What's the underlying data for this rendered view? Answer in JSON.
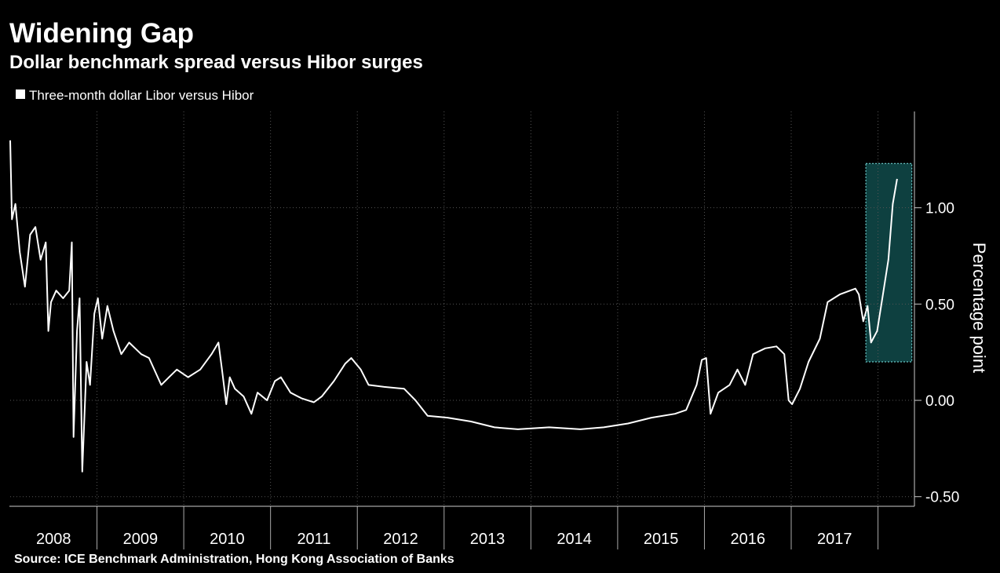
{
  "chart_data": {
    "type": "line",
    "title": "Widening Gap",
    "subtitle": "Dollar benchmark spread versus Hibor surges",
    "source": "Source: ICE Benchmark Administration, Hong Kong Association of Banks",
    "y_axis_label": "Percentage point",
    "xlim": [
      2008,
      2018.42
    ],
    "ylim": [
      -0.55,
      1.5
    ],
    "yticks": [
      {
        "value": 1,
        "label": "1.00"
      },
      {
        "value": 0.5,
        "label": "0.50"
      },
      {
        "value": 0,
        "label": "0.00"
      },
      {
        "value": -0.5,
        "label": "-0.50"
      }
    ],
    "xticks": [
      {
        "value": 2008.5,
        "label": "2008"
      },
      {
        "value": 2009.5,
        "label": "2009"
      },
      {
        "value": 2010.5,
        "label": "2010"
      },
      {
        "value": 2011.5,
        "label": "2011"
      },
      {
        "value": 2012.5,
        "label": "2012"
      },
      {
        "value": 2013.5,
        "label": "2013"
      },
      {
        "value": 2014.5,
        "label": "2014"
      },
      {
        "value": 2015.5,
        "label": "2015"
      },
      {
        "value": 2016.5,
        "label": "2016"
      },
      {
        "value": 2017.5,
        "label": "2017"
      }
    ],
    "xseparators": [
      2009,
      2010,
      2011,
      2012,
      2013,
      2014,
      2015,
      2016,
      2017,
      2018
    ],
    "grid": true,
    "highlight": {
      "xlim": [
        2017.86,
        2018.39
      ],
      "ylim": [
        0.2,
        1.23
      ],
      "color": "#1f8f8f"
    },
    "x": [
      2008.0,
      2008.02,
      2008.06,
      2008.11,
      2008.17,
      2008.23,
      2008.29,
      2008.35,
      2008.41,
      2008.44,
      2008.47,
      2008.53,
      2008.61,
      2008.68,
      2008.71,
      2008.73,
      2008.77,
      2008.8,
      2008.83,
      2008.88,
      2008.92,
      2008.97,
      2009.01,
      2009.06,
      2009.12,
      2009.19,
      2009.28,
      2009.37,
      2009.51,
      2009.6,
      2009.74,
      2009.83,
      2009.92,
      2010.05,
      2010.19,
      2010.32,
      2010.4,
      2010.44,
      2010.49,
      2010.53,
      2010.59,
      2010.69,
      2010.78,
      2010.85,
      2010.96,
      2011.05,
      2011.12,
      2011.23,
      2011.36,
      2011.5,
      2011.59,
      2011.73,
      2011.86,
      2011.93,
      2012.04,
      2012.13,
      2012.31,
      2012.54,
      2012.67,
      2012.81,
      2013.04,
      2013.31,
      2013.58,
      2013.85,
      2014.21,
      2014.57,
      2014.84,
      2015.12,
      2015.39,
      2015.66,
      2015.79,
      2015.91,
      2015.97,
      2016.02,
      2016.07,
      2016.16,
      2016.29,
      2016.38,
      2016.47,
      2016.56,
      2016.7,
      2016.83,
      2016.92,
      2016.97,
      2017.01,
      2017.1,
      2017.2,
      2017.33,
      2017.42,
      2017.56,
      2017.74,
      2017.78,
      2017.83,
      2017.88,
      2017.92,
      2017.99,
      2018.05,
      2018.12,
      2018.17,
      2018.22
    ],
    "series": [
      {
        "name": "Three-month dollar Libor versus Hibor",
        "color": "#ffffff",
        "values": [
          1.35,
          0.94,
          1.02,
          0.77,
          0.59,
          0.86,
          0.9,
          0.73,
          0.82,
          0.36,
          0.51,
          0.57,
          0.53,
          0.57,
          0.82,
          -0.19,
          0.36,
          0.53,
          -0.37,
          0.2,
          0.08,
          0.45,
          0.53,
          0.32,
          0.49,
          0.36,
          0.24,
          0.3,
          0.24,
          0.22,
          0.08,
          0.12,
          0.16,
          0.12,
          0.16,
          0.24,
          0.3,
          0.16,
          -0.02,
          0.12,
          0.06,
          0.02,
          -0.07,
          0.04,
          0.0,
          0.1,
          0.12,
          0.04,
          0.01,
          -0.01,
          0.02,
          0.1,
          0.19,
          0.22,
          0.16,
          0.08,
          0.07,
          0.06,
          0.0,
          -0.08,
          -0.09,
          -0.11,
          -0.14,
          -0.15,
          -0.14,
          -0.15,
          -0.14,
          -0.12,
          -0.09,
          -0.07,
          -0.05,
          0.08,
          0.21,
          0.22,
          -0.07,
          0.04,
          0.08,
          0.16,
          0.08,
          0.24,
          0.27,
          0.28,
          0.24,
          0.0,
          -0.02,
          0.06,
          0.2,
          0.32,
          0.51,
          0.55,
          0.58,
          0.55,
          0.41,
          0.49,
          0.3,
          0.36,
          0.53,
          0.73,
          1.02,
          1.15
        ]
      }
    ]
  }
}
